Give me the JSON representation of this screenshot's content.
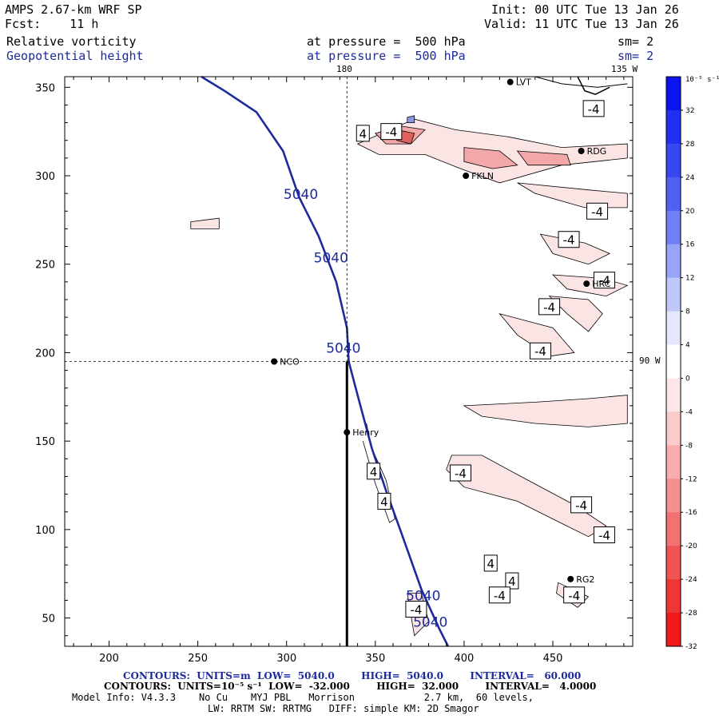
{
  "header": {
    "model_title": "AMPS 2.67-km WRF SP",
    "forecast": "Fcst:    11 h",
    "init": "Init: 00 UTC Tue 13 Jan 26",
    "valid": "Valid: 11 UTC Tue 13 Jan 26",
    "field1": {
      "name": "Relative vorticity",
      "pressure": "at pressure =  500 hPa",
      "smoothing": "sm= 2"
    },
    "field2": {
      "name": "Geopotential height",
      "pressure": "at pressure =  500 hPa",
      "smoothing": "sm= 2"
    }
  },
  "colors": {
    "height_contour": "#1c2a9c",
    "vort_neg_light": "#fbe4e4",
    "vort_neg_mid": "#f2a8a8",
    "vort_neg_dark": "#e06060",
    "vort_pos": "#8a96e8"
  },
  "chart_data": {
    "type": "contour",
    "xlim": [
      175,
      495
    ],
    "ylim": [
      34,
      356
    ],
    "xticks": [
      200,
      250,
      300,
      350,
      400,
      450
    ],
    "yticks": [
      50,
      100,
      150,
      200,
      250,
      300,
      350
    ],
    "meridian_labels": {
      "top": "180",
      "top_right": "135 W",
      "right": "90 W"
    },
    "stations": [
      {
        "name": "NCO",
        "x": 293,
        "y": 195
      },
      {
        "name": "Henry",
        "x": 334,
        "y": 155
      },
      {
        "name": "FKLN",
        "x": 401,
        "y": 300
      },
      {
        "name": "RDG",
        "x": 466,
        "y": 314
      },
      {
        "name": "HRC",
        "x": 469,
        "y": 239
      },
      {
        "name": "RG2",
        "x": 460,
        "y": 72
      },
      {
        "name": "LVT",
        "x": 426,
        "y": 353
      }
    ],
    "height_contour_level": "5040",
    "height_labels": [
      {
        "text": "5040",
        "x": 308,
        "y": 287
      },
      {
        "text": "5040",
        "x": 325,
        "y": 251
      },
      {
        "text": "5040",
        "x": 332,
        "y": 200
      },
      {
        "text": "5040",
        "x": 377,
        "y": 60
      },
      {
        "text": "5040",
        "x": 381,
        "y": 45
      }
    ],
    "vorticity_labels": [
      {
        "text": "4",
        "x": 343,
        "y": 324
      },
      {
        "text": "-4",
        "x": 359,
        "y": 325
      },
      {
        "text": "-4",
        "x": 473,
        "y": 338
      },
      {
        "text": "-4",
        "x": 475,
        "y": 280
      },
      {
        "text": "-4",
        "x": 459,
        "y": 264
      },
      {
        "text": "-4",
        "x": 479,
        "y": 241
      },
      {
        "text": "-4",
        "x": 448,
        "y": 226
      },
      {
        "text": "-4",
        "x": 443,
        "y": 201
      },
      {
        "text": "4",
        "x": 349,
        "y": 133
      },
      {
        "text": "4",
        "x": 355,
        "y": 116
      },
      {
        "text": "-4",
        "x": 398,
        "y": 132
      },
      {
        "text": "-4",
        "x": 466,
        "y": 114
      },
      {
        "text": "-4",
        "x": 479,
        "y": 97
      },
      {
        "text": "4",
        "x": 415,
        "y": 81
      },
      {
        "text": "4",
        "x": 427,
        "y": 71
      },
      {
        "text": "-4",
        "x": 373,
        "y": 55
      },
      {
        "text": "-4",
        "x": 420,
        "y": 63
      },
      {
        "text": "-4",
        "x": 462,
        "y": 63
      }
    ],
    "colorbar": {
      "units": "10⁻⁵ s⁻¹",
      "ticks": [
        "32",
        "28",
        "24",
        "20",
        "16",
        "12",
        "8",
        "4",
        "0",
        "-4",
        "-8",
        "-12",
        "-16",
        "-20",
        "-24",
        "-28",
        "-32"
      ],
      "colors": [
        "#0a14f0",
        "#2030f0",
        "#3848f0",
        "#5060f0",
        "#7080f2",
        "#98a4f6",
        "#c0c8fa",
        "#e4e8fd",
        "#ffffff",
        "#fde6e6",
        "#fbcaca",
        "#f8aeae",
        "#f59090",
        "#f27272",
        "#f05454",
        "#ee3636",
        "#f01818"
      ]
    }
  },
  "footer": {
    "contours1": "CONTOURS:  UNITS=m  LOW=  5040.0        HIGH=  5040.0        INTERVAL=   60.000",
    "contours2": "CONTOURS:  UNITS=10⁻⁵ s⁻¹  LOW=  -32.000        HIGH=  32.000        INTERVAL=   4.0000",
    "model_info": "Model Info: V4.3.3    No Cu    MYJ PBL   Morrison            2.7 km,  60 levels,",
    "physics": "LW: RRTM SW: RRTMG   DIFF: simple KM: 2D Smagor"
  }
}
